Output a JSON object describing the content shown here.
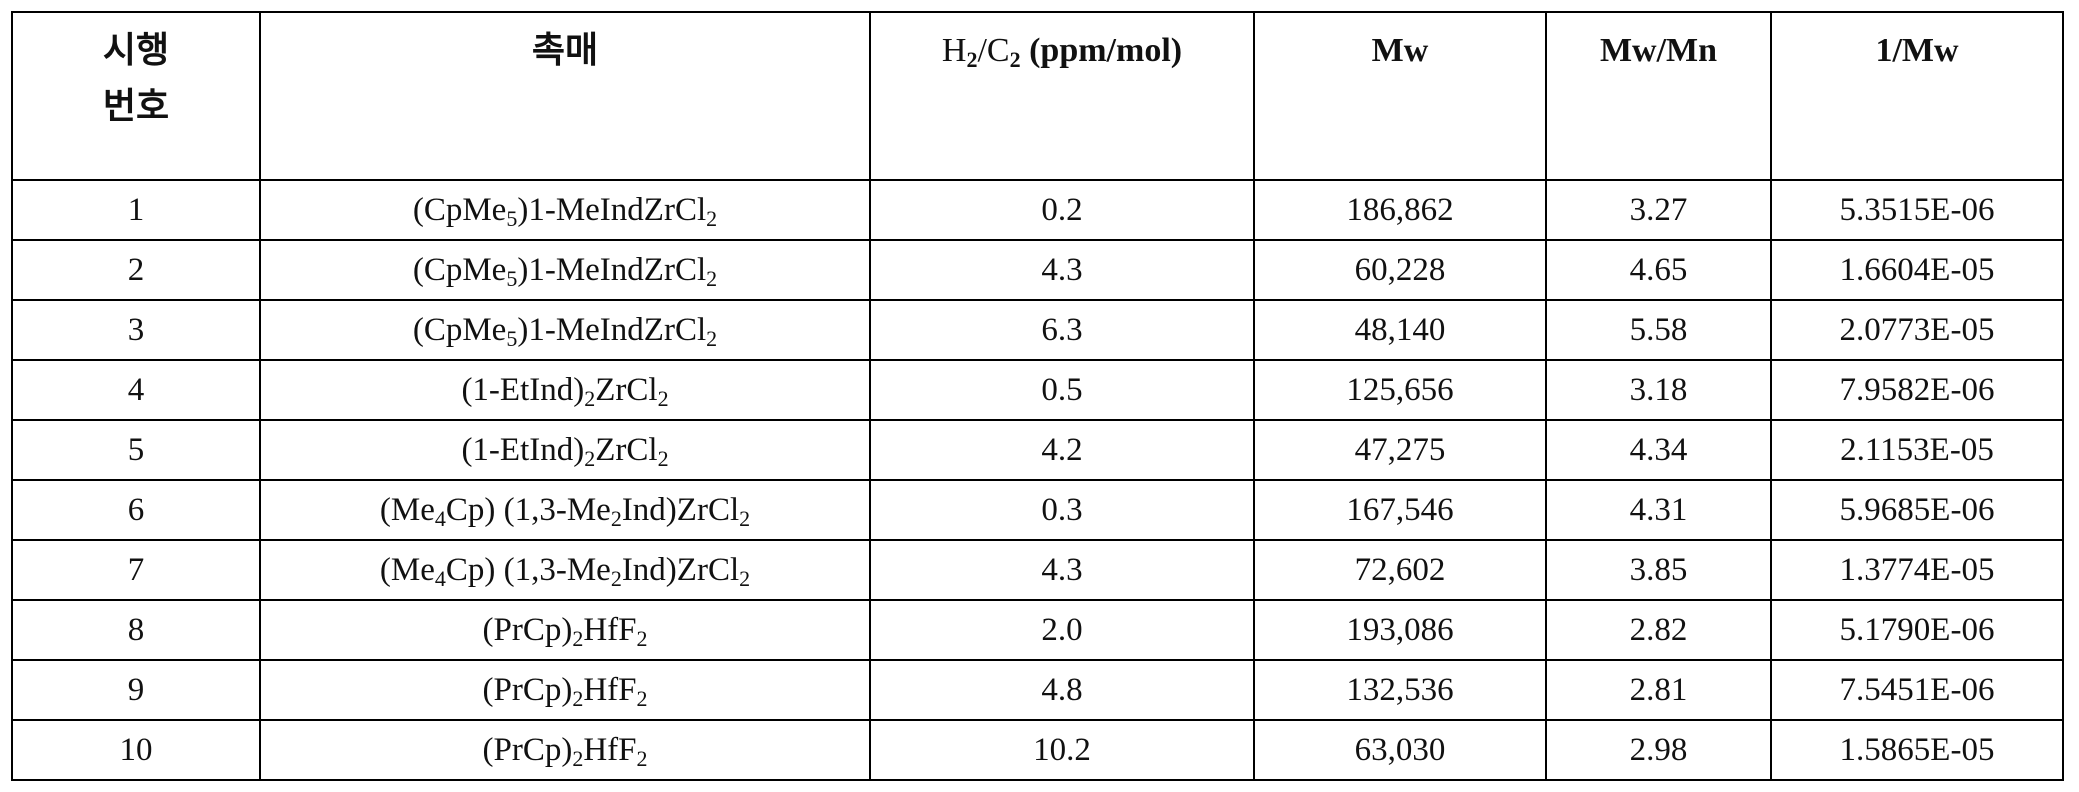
{
  "header": {
    "run": [
      "시행",
      "번호"
    ],
    "catalyst": "촉매",
    "ratio": [
      "H",
      "2",
      "/C",
      "2",
      " (ppm/mol)"
    ],
    "mw": "Mw",
    "mwmn": "Mw/Mn",
    "inv": "1/Mw"
  },
  "table": {
    "rows": [
      [
        "1",
        [
          "(CpMe",
          "5",
          ")1-MeIndZrCl",
          "2"
        ],
        "0.2",
        "186,862",
        "3.27",
        "5.3515E-06"
      ],
      [
        "2",
        [
          "(CpMe",
          "5",
          ")1-MeIndZrCl",
          "2"
        ],
        "4.3",
        "60,228",
        "4.65",
        "1.6604E-05"
      ],
      [
        "3",
        [
          "(CpMe",
          "5",
          ")1-MeIndZrCl",
          "2"
        ],
        "6.3",
        "48,140",
        "5.58",
        "2.0773E-05"
      ],
      [
        "4",
        [
          "(1-EtInd)",
          "2",
          "ZrCl",
          "2"
        ],
        "0.5",
        "125,656",
        "3.18",
        "7.9582E-06"
      ],
      [
        "5",
        [
          "(1-EtInd)",
          "2",
          "ZrCl",
          "2"
        ],
        "4.2",
        "47,275",
        "4.34",
        "2.1153E-05"
      ],
      [
        "6",
        [
          "(Me",
          "4",
          "Cp) (1,3-Me",
          "2",
          "Ind)ZrCl",
          "2"
        ],
        "0.3",
        "167,546",
        "4.31",
        "5.9685E-06"
      ],
      [
        "7",
        [
          "(Me",
          "4",
          "Cp) (1,3-Me",
          "2",
          "Ind)ZrCl",
          "2"
        ],
        "4.3",
        "72,602",
        "3.85",
        "1.3774E-05"
      ],
      [
        "8",
        [
          "(PrCp)",
          "2",
          "HfF",
          "2"
        ],
        "2.0",
        "193,086",
        "2.82",
        "5.1790E-06"
      ],
      [
        "9",
        [
          "(PrCp)",
          "2",
          "HfF",
          "2"
        ],
        "4.8",
        "132,536",
        "2.81",
        "7.5451E-06"
      ],
      [
        "10",
        [
          "(PrCp)",
          "2",
          "HfF",
          "2"
        ],
        "10.2",
        "63,030",
        "2.98",
        "1.5865E-05"
      ]
    ]
  }
}
